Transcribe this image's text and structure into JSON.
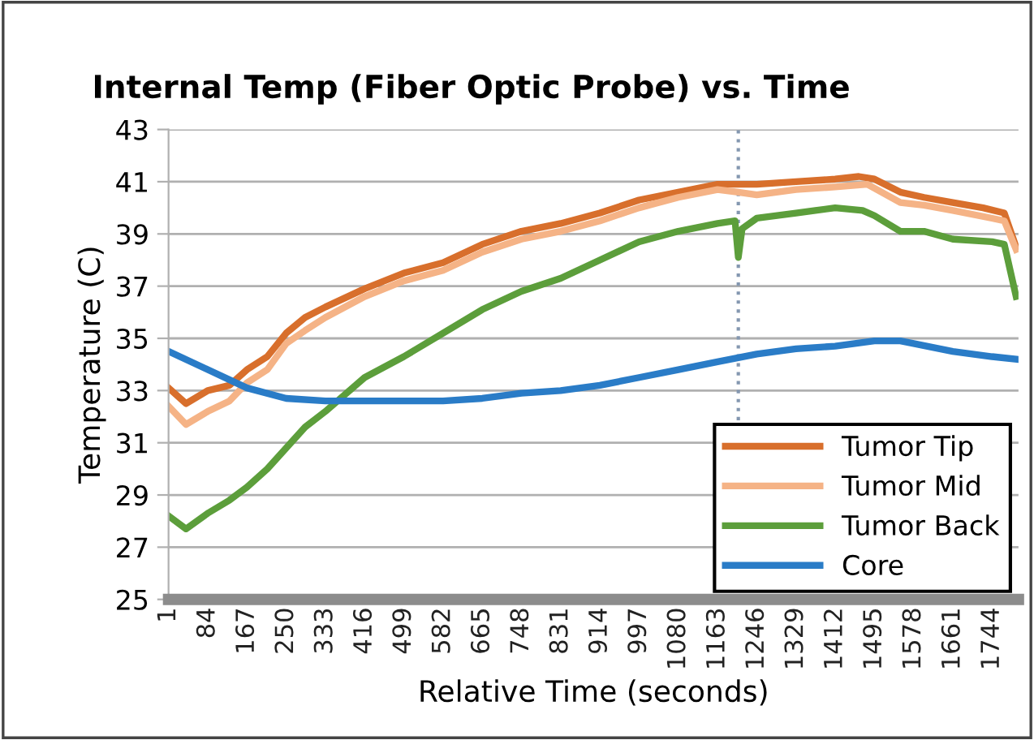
{
  "chart_data": {
    "type": "line",
    "title": "Internal Temp (Fiber Optic Probe) vs. Time",
    "xlabel": "Relative Time (seconds)",
    "ylabel": "Temperature (C)",
    "xlim": [
      1,
      1800
    ],
    "xticks": [
      1,
      84,
      167,
      250,
      333,
      416,
      499,
      582,
      665,
      748,
      831,
      914,
      997,
      1080,
      1163,
      1246,
      1329,
      1412,
      1495,
      1578,
      1661,
      1744
    ],
    "ylim": [
      25,
      43
    ],
    "yticks": [
      25,
      27,
      29,
      31,
      33,
      35,
      37,
      39,
      41,
      43
    ],
    "grid": "y",
    "legend": "bottom right",
    "line_style": "solid",
    "ref_lines": [
      {
        "axis": "x",
        "value": 1207,
        "color": "#8497b0",
        "line_style": "dotted"
      }
    ],
    "series": [
      {
        "name": "Tumor Tip",
        "color": "#d86f2c",
        "x": [
          1,
          38,
          84,
          130,
          167,
          210,
          250,
          290,
          333,
          416,
          499,
          582,
          665,
          748,
          831,
          914,
          997,
          1080,
          1163,
          1207,
          1246,
          1329,
          1412,
          1462,
          1495,
          1550,
          1600,
          1661,
          1725,
          1770,
          1795
        ],
        "values": [
          33.1,
          32.5,
          33.0,
          33.2,
          33.8,
          34.3,
          35.2,
          35.8,
          36.2,
          36.9,
          37.5,
          37.9,
          38.6,
          39.1,
          39.4,
          39.8,
          40.3,
          40.6,
          40.9,
          40.9,
          40.9,
          41.0,
          41.1,
          41.2,
          41.1,
          40.6,
          40.4,
          40.2,
          40.0,
          39.8,
          38.5
        ]
      },
      {
        "name": "Tumor Mid",
        "color": "#f5b386",
        "x": [
          1,
          38,
          84,
          130,
          167,
          210,
          250,
          290,
          333,
          416,
          499,
          582,
          665,
          748,
          831,
          914,
          997,
          1080,
          1163,
          1207,
          1246,
          1329,
          1412,
          1480,
          1550,
          1600,
          1661,
          1744,
          1770,
          1795
        ],
        "values": [
          32.4,
          31.7,
          32.2,
          32.6,
          33.3,
          33.8,
          34.8,
          35.3,
          35.8,
          36.6,
          37.2,
          37.6,
          38.3,
          38.8,
          39.1,
          39.5,
          40.0,
          40.4,
          40.7,
          40.6,
          40.5,
          40.7,
          40.8,
          40.9,
          40.2,
          40.1,
          39.9,
          39.6,
          39.5,
          38.4
        ]
      },
      {
        "name": "Tumor Back",
        "color": "#5c9e3b",
        "x": [
          1,
          38,
          84,
          130,
          167,
          210,
          250,
          290,
          333,
          416,
          499,
          582,
          665,
          748,
          831,
          914,
          997,
          1080,
          1163,
          1200,
          1207,
          1215,
          1246,
          1329,
          1412,
          1470,
          1495,
          1550,
          1600,
          1661,
          1744,
          1770,
          1795
        ],
        "values": [
          28.2,
          27.7,
          28.3,
          28.8,
          29.3,
          30.0,
          30.8,
          31.6,
          32.2,
          33.5,
          34.3,
          35.2,
          36.1,
          36.8,
          37.3,
          38.0,
          38.7,
          39.1,
          39.4,
          39.5,
          38.1,
          39.2,
          39.6,
          39.8,
          40.0,
          39.9,
          39.7,
          39.1,
          39.1,
          38.8,
          38.7,
          38.6,
          36.6
        ]
      },
      {
        "name": "Core",
        "color": "#2a7cc7",
        "x": [
          1,
          84,
          167,
          250,
          333,
          416,
          499,
          582,
          665,
          748,
          831,
          914,
          997,
          1080,
          1163,
          1246,
          1329,
          1412,
          1495,
          1550,
          1578,
          1661,
          1744,
          1795
        ],
        "values": [
          34.5,
          33.8,
          33.1,
          32.7,
          32.6,
          32.6,
          32.6,
          32.6,
          32.7,
          32.9,
          33.0,
          33.2,
          33.5,
          33.8,
          34.1,
          34.4,
          34.6,
          34.7,
          34.9,
          34.9,
          34.8,
          34.5,
          34.3,
          34.2
        ]
      }
    ]
  }
}
